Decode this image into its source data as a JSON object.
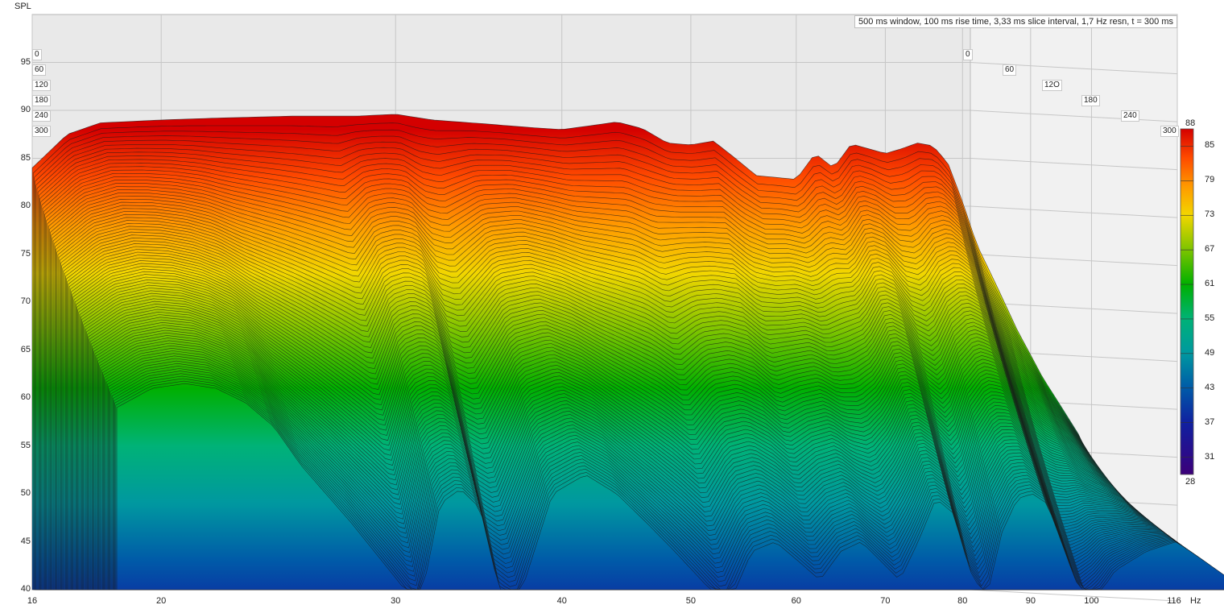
{
  "chart_data": {
    "type": "waterfall",
    "ylabel": "SPL",
    "xunit": "Hz",
    "x_ticks": [
      "16",
      "20",
      "30",
      "40",
      "50",
      "60",
      "70",
      "80",
      "90",
      "100",
      "116"
    ],
    "y_ticks": [
      "95",
      "90",
      "85",
      "80",
      "75",
      "70",
      "65",
      "60",
      "55",
      "50",
      "45",
      "40"
    ],
    "xlim": [
      16,
      116
    ],
    "ylim": [
      40,
      100
    ],
    "x_scale": "log",
    "grid": true,
    "info": "500 ms window, 100 ms rise time, 3,33 ms slice interval, 1,7 Hz resn, t = 300 ms",
    "time_axis_labels_left": [
      "0",
      "60",
      "120",
      "180",
      "240",
      "300"
    ],
    "time_axis_labels_right": [
      "0",
      "60",
      "12O",
      "180",
      "240",
      "300"
    ],
    "time_range_ms": [
      0,
      300
    ],
    "colorbar": {
      "max_label": "88",
      "min_label": "28",
      "ticks": [
        "85",
        "79",
        "73",
        "67",
        "61",
        "55",
        "49",
        "43",
        "37",
        "31"
      ],
      "range": [
        28,
        88
      ],
      "colors": [
        "#d40000",
        "#ff5a00",
        "#f5d000",
        "#7ec800",
        "#00b400",
        "#00b37a",
        "#008c9a",
        "#0050a0",
        "#10108c",
        "#3c0078"
      ]
    },
    "series": [
      {
        "name": "0 ms",
        "x": [
          16,
          17,
          18,
          20,
          22,
          25,
          28,
          30,
          32,
          35,
          38,
          40,
          42,
          44,
          46,
          48,
          50,
          52,
          54,
          56,
          58,
          60,
          62,
          64,
          66,
          68,
          70,
          72,
          74,
          76,
          78,
          80,
          82,
          84,
          86,
          88,
          90,
          92,
          95,
          98,
          100,
          105,
          110
        ],
        "y": [
          84.0,
          87.5,
          88.7,
          89.0,
          89.2,
          89.4,
          89.4,
          89.6,
          89.0,
          88.6,
          88.2,
          88.0,
          88.4,
          88.8,
          88.1,
          86.6,
          86.4,
          86.8,
          85.0,
          83.2,
          83.0,
          82.8,
          85.5,
          84.0,
          86.5,
          86.0,
          85.5,
          86.0,
          86.6,
          86.3,
          84.5,
          80.5,
          76.0,
          73.0,
          70.0,
          67.0,
          64.5,
          62.0,
          59.0,
          56.0,
          53.0,
          49.5,
          46.0
        ]
      },
      {
        "name": "300 ms",
        "x": [
          16,
          17,
          18,
          19,
          20,
          21,
          22,
          24,
          26,
          27,
          28,
          29,
          30,
          31,
          32,
          34,
          36,
          38,
          40,
          42,
          44,
          46,
          48,
          50,
          52,
          54,
          56,
          58,
          60,
          62,
          64,
          66,
          68,
          70,
          72,
          74,
          76,
          78,
          80,
          82,
          84,
          86,
          88,
          90,
          95,
          100,
          105,
          110
        ],
        "y": [
          59.0,
          61.0,
          61.5,
          61.0,
          59.5,
          57.0,
          53.0,
          47.0,
          41.0,
          38.0,
          49.0,
          50.5,
          48.5,
          40.0,
          38.5,
          50.0,
          52.0,
          50.0,
          47.0,
          44.0,
          41.0,
          38.0,
          44.0,
          45.0,
          43.0,
          41.0,
          44.0,
          45.0,
          43.0,
          41.0,
          45.0,
          49.5,
          48.0,
          42.0,
          39.0,
          46.0,
          49.5,
          50.0,
          49.0,
          45.0,
          41.0,
          38.5,
          40.0,
          42.0,
          44.0,
          45.0,
          43.0,
          41.0
        ]
      }
    ]
  }
}
